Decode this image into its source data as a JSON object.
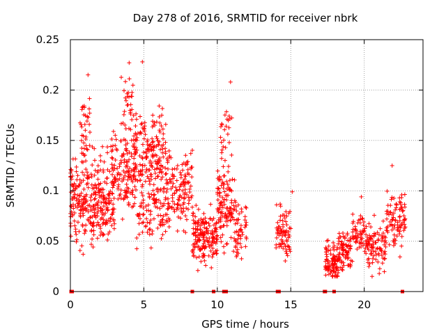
{
  "chart_data": {
    "type": "scatter",
    "title": "Day 278 of 2016, SRMTID for receiver nbrk",
    "xlabel": "GPS time / hours",
    "ylabel": "SRMTID / TECUs",
    "xlim": [
      0,
      24
    ],
    "ylim": [
      0,
      0.25
    ],
    "xticks": [
      0,
      5,
      10,
      15,
      20
    ],
    "xtick_labels": [
      "0",
      "5",
      "10",
      "15",
      "20"
    ],
    "yticks": [
      0,
      0.05,
      0.1,
      0.15,
      0.2,
      0.25
    ],
    "ytick_labels": [
      "0",
      "0.05",
      "0.1",
      "0.15",
      "0.2",
      "0.25"
    ],
    "grid": true,
    "marker": "+",
    "series_color": "#ff0000",
    "clusters": [
      {
        "x_range": [
          0.0,
          1.0
        ],
        "y_center": 0.09,
        "y_spread": 0.025,
        "count": 110
      },
      {
        "x_range": [
          0.6,
          1.4
        ],
        "y_center": 0.17,
        "y_spread": 0.022,
        "count": 35
      },
      {
        "x_range": [
          1.0,
          3.0
        ],
        "y_center": 0.085,
        "y_spread": 0.022,
        "count": 170
      },
      {
        "x_range": [
          1.0,
          3.0
        ],
        "y_center": 0.125,
        "y_spread": 0.02,
        "count": 40
      },
      {
        "x_range": [
          2.8,
          4.5
        ],
        "y_center": 0.12,
        "y_spread": 0.03,
        "count": 140
      },
      {
        "x_range": [
          3.4,
          4.3
        ],
        "y_center": 0.19,
        "y_spread": 0.02,
        "count": 25
      },
      {
        "x_range": [
          4.3,
          6.5
        ],
        "y_center": 0.135,
        "y_spread": 0.03,
        "count": 190
      },
      {
        "x_range": [
          4.5,
          6.5
        ],
        "y_center": 0.08,
        "y_spread": 0.022,
        "count": 90
      },
      {
        "x_range": [
          6.5,
          8.3
        ],
        "y_center": 0.1,
        "y_spread": 0.025,
        "count": 140
      },
      {
        "x_range": [
          8.3,
          10.0
        ],
        "y_center": 0.055,
        "y_spread": 0.018,
        "count": 170
      },
      {
        "x_range": [
          10.0,
          11.2
        ],
        "y_center": 0.085,
        "y_spread": 0.025,
        "count": 120
      },
      {
        "x_range": [
          10.2,
          11.0
        ],
        "y_center": 0.155,
        "y_spread": 0.02,
        "count": 25
      },
      {
        "x_range": [
          11.2,
          12.0
        ],
        "y_center": 0.06,
        "y_spread": 0.02,
        "count": 50
      },
      {
        "x_range": [
          14.0,
          15.0
        ],
        "y_center": 0.06,
        "y_spread": 0.018,
        "count": 75
      },
      {
        "x_range": [
          17.3,
          18.2
        ],
        "y_center": 0.03,
        "y_spread": 0.012,
        "count": 90
      },
      {
        "x_range": [
          18.2,
          19.2
        ],
        "y_center": 0.04,
        "y_spread": 0.012,
        "count": 80
      },
      {
        "x_range": [
          19.2,
          20.0
        ],
        "y_center": 0.06,
        "y_spread": 0.012,
        "count": 50
      },
      {
        "x_range": [
          20.0,
          21.5
        ],
        "y_center": 0.045,
        "y_spread": 0.015,
        "count": 100
      },
      {
        "x_range": [
          21.5,
          22.8
        ],
        "y_center": 0.07,
        "y_spread": 0.018,
        "count": 90
      }
    ],
    "extreme_points": [
      {
        "x": 1.2,
        "y": 0.215
      },
      {
        "x": 4.0,
        "y": 0.227
      },
      {
        "x": 4.9,
        "y": 0.228
      },
      {
        "x": 10.9,
        "y": 0.208
      },
      {
        "x": 21.9,
        "y": 0.125
      },
      {
        "x": 15.1,
        "y": 0.099
      },
      {
        "x": 19.8,
        "y": 0.094
      },
      {
        "x": 22.4,
        "y": 0.093
      }
    ],
    "zero_points": [
      0.05,
      0.12,
      8.3,
      9.75,
      10.45,
      10.52,
      10.6,
      14.1,
      14.2,
      17.3,
      17.35,
      17.95,
      22.6
    ]
  }
}
